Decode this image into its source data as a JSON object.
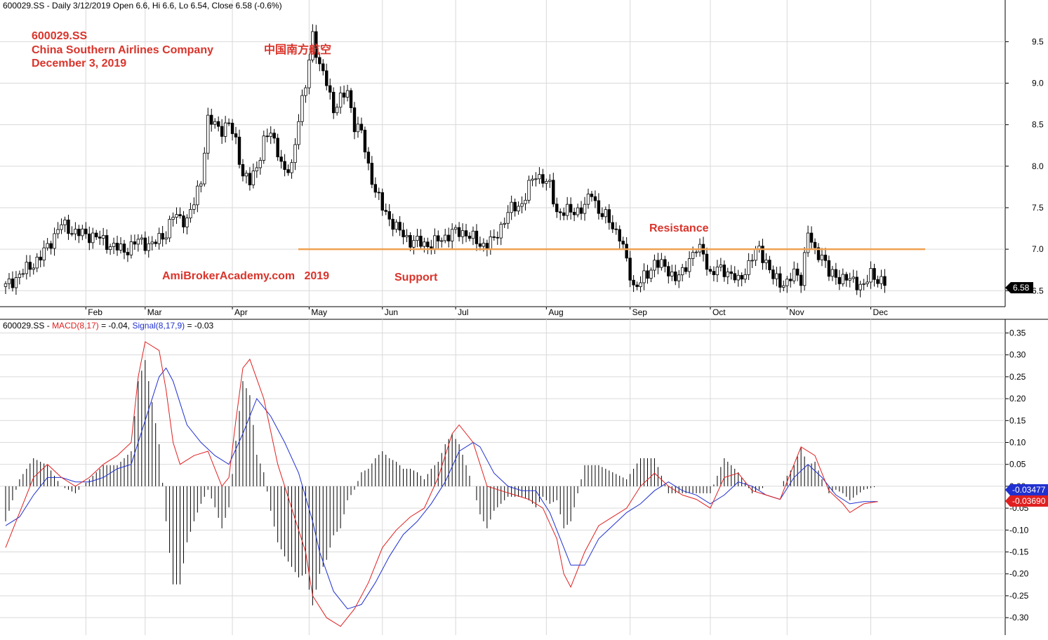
{
  "header": {
    "price_prefix": "600029.SS - Daily 3/12/2019 Open 6.6, Hi 6.6, Lo 6.54, Close 6.58 (-0.6%)",
    "macd_symbol": "600029.SS - ",
    "macd_label": "MACD(8,17)",
    "macd_value": " = -0.04, ",
    "signal_label": "Signal(8,17,9)",
    "signal_value": " = -0.03"
  },
  "annotations": {
    "ticker": "600029.SS",
    "company": "China Southern Airlines Company",
    "date": "December 3, 2019",
    "chinese_name": "中国南方航空",
    "watermark": "AmiBrokerAcademy.com   2019",
    "support": "Support",
    "resistance": "Resistance"
  },
  "badges": {
    "last_price": "6.58",
    "signal_last": "-0.03477",
    "macd_last": "-0.03690"
  },
  "colors": {
    "candle": "#000000",
    "level_line": "#f0a050",
    "macd": "#e02020",
    "signal": "#2030d0",
    "annotation": "#d9342b",
    "grid": "#d9d9d9"
  },
  "chart_data": [
    {
      "type": "candlestick",
      "symbol": "600029.SS",
      "x_months": [
        "Feb",
        "Mar",
        "Apr",
        "May",
        "Jun",
        "Jul",
        "Aug",
        "Sep",
        "Oct",
        "Nov",
        "Dec"
      ],
      "y_ticks": [
        9.5,
        9.0,
        8.5,
        8.0,
        7.5,
        7.0,
        6.5
      ],
      "ylim": [
        6.35,
        9.85
      ],
      "level_line": {
        "value": 7.0,
        "labels": [
          "Support",
          "Resistance"
        ]
      },
      "close_path": [
        [
          0,
          6.55
        ],
        [
          10,
          6.9
        ],
        [
          16,
          7.3
        ],
        [
          20,
          7.2
        ],
        [
          26,
          7.15
        ],
        [
          30,
          7.05
        ],
        [
          34,
          6.98
        ],
        [
          38,
          7.1
        ],
        [
          42,
          7.05
        ],
        [
          46,
          7.2
        ],
        [
          48,
          7.4
        ],
        [
          52,
          7.35
        ],
        [
          54,
          7.55
        ],
        [
          56,
          7.85
        ],
        [
          58,
          8.55
        ],
        [
          60,
          8.5
        ],
        [
          62,
          8.45
        ],
        [
          64,
          8.5
        ],
        [
          66,
          8.3
        ],
        [
          68,
          7.9
        ],
        [
          70,
          7.8
        ],
        [
          72,
          8.0
        ],
        [
          74,
          8.3
        ],
        [
          76,
          8.4
        ],
        [
          78,
          8.2
        ],
        [
          80,
          7.9
        ],
        [
          82,
          8.0
        ],
        [
          84,
          8.6
        ],
        [
          86,
          8.95
        ],
        [
          88,
          9.6
        ],
        [
          90,
          9.2
        ],
        [
          92,
          9.0
        ],
        [
          94,
          8.7
        ],
        [
          96,
          8.8
        ],
        [
          98,
          8.9
        ],
        [
          100,
          8.5
        ],
        [
          102,
          8.4
        ],
        [
          104,
          8.0
        ],
        [
          106,
          7.7
        ],
        [
          108,
          7.5
        ],
        [
          112,
          7.25
        ],
        [
          116,
          7.1
        ],
        [
          122,
          7.05
        ],
        [
          128,
          7.2
        ],
        [
          132,
          7.2
        ],
        [
          136,
          7.05
        ],
        [
          140,
          7.1
        ],
        [
          144,
          7.45
        ],
        [
          148,
          7.55
        ],
        [
          150,
          7.75
        ],
        [
          152,
          7.9
        ],
        [
          154,
          7.85
        ],
        [
          156,
          7.75
        ],
        [
          158,
          7.45
        ],
        [
          162,
          7.45
        ],
        [
          166,
          7.5
        ],
        [
          168,
          7.7
        ],
        [
          170,
          7.45
        ],
        [
          173,
          7.35
        ],
        [
          176,
          7.15
        ],
        [
          178,
          6.85
        ],
        [
          180,
          6.55
        ],
        [
          182,
          6.6
        ],
        [
          184,
          6.7
        ],
        [
          186,
          6.85
        ],
        [
          188,
          6.8
        ],
        [
          190,
          6.75
        ],
        [
          192,
          6.65
        ],
        [
          194,
          6.7
        ],
        [
          196,
          6.9
        ],
        [
          198,
          7.0
        ],
        [
          200,
          6.95
        ],
        [
          202,
          6.7
        ],
        [
          204,
          6.75
        ],
        [
          206,
          6.75
        ],
        [
          208,
          6.7
        ],
        [
          210,
          6.6
        ],
        [
          212,
          6.75
        ],
        [
          214,
          6.9
        ],
        [
          216,
          7.0
        ],
        [
          218,
          6.85
        ],
        [
          220,
          6.65
        ],
        [
          222,
          6.6
        ],
        [
          224,
          6.6
        ],
        [
          226,
          6.7
        ],
        [
          228,
          6.65
        ],
        [
          230,
          7.2
        ],
        [
          232,
          6.95
        ],
        [
          234,
          6.95
        ],
        [
          236,
          6.7
        ],
        [
          240,
          6.65
        ],
        [
          244,
          6.6
        ],
        [
          246,
          6.55
        ],
        [
          248,
          6.7
        ],
        [
          250,
          6.65
        ],
        [
          252,
          6.58
        ]
      ]
    },
    {
      "type": "line",
      "title": "MACD(8,17) / Signal(8,17,9)",
      "x_months": [
        "Feb",
        "Mar",
        "Apr",
        "May",
        "Jun",
        "Jul",
        "Aug",
        "Sep",
        "Oct",
        "Nov",
        "Dec"
      ],
      "y_ticks": [
        0.35,
        0.3,
        0.25,
        0.2,
        0.15,
        0.1,
        0.05,
        0.0,
        -0.05,
        -0.1,
        -0.15,
        -0.2,
        -0.25,
        -0.3
      ],
      "ylim": [
        -0.335,
        0.37
      ],
      "series": [
        {
          "name": "MACD(8,17)",
          "points": [
            [
              0,
              -0.14
            ],
            [
              4,
              -0.06
            ],
            [
              8,
              0.02
            ],
            [
              12,
              0.05
            ],
            [
              16,
              0.02
            ],
            [
              20,
              0.0
            ],
            [
              24,
              0.02
            ],
            [
              28,
              0.05
            ],
            [
              32,
              0.07
            ],
            [
              36,
              0.1
            ],
            [
              38,
              0.25
            ],
            [
              40,
              0.33
            ],
            [
              44,
              0.31
            ],
            [
              46,
              0.22
            ],
            [
              48,
              0.1
            ],
            [
              50,
              0.05
            ],
            [
              54,
              0.07
            ],
            [
              58,
              0.08
            ],
            [
              62,
              0.0
            ],
            [
              64,
              0.02
            ],
            [
              66,
              0.15
            ],
            [
              68,
              0.27
            ],
            [
              70,
              0.29
            ],
            [
              74,
              0.2
            ],
            [
              78,
              0.05
            ],
            [
              82,
              -0.05
            ],
            [
              86,
              -0.15
            ],
            [
              88,
              -0.25
            ],
            [
              92,
              -0.3
            ],
            [
              96,
              -0.32
            ],
            [
              100,
              -0.28
            ],
            [
              104,
              -0.22
            ],
            [
              108,
              -0.14
            ],
            [
              112,
              -0.1
            ],
            [
              116,
              -0.07
            ],
            [
              120,
              -0.05
            ],
            [
              124,
              0.02
            ],
            [
              128,
              0.12
            ],
            [
              130,
              0.14
            ],
            [
              134,
              0.1
            ],
            [
              138,
              0.0
            ],
            [
              142,
              -0.01
            ],
            [
              146,
              -0.02
            ],
            [
              150,
              -0.03
            ],
            [
              154,
              -0.05
            ],
            [
              158,
              -0.12
            ],
            [
              160,
              -0.2
            ],
            [
              162,
              -0.23
            ],
            [
              166,
              -0.15
            ],
            [
              170,
              -0.09
            ],
            [
              174,
              -0.07
            ],
            [
              178,
              -0.05
            ],
            [
              182,
              0.0
            ],
            [
              186,
              0.03
            ],
            [
              190,
              0.0
            ],
            [
              194,
              -0.02
            ],
            [
              198,
              -0.03
            ],
            [
              202,
              -0.05
            ],
            [
              206,
              0.02
            ],
            [
              210,
              0.03
            ],
            [
              214,
              -0.01
            ],
            [
              218,
              -0.02
            ],
            [
              222,
              -0.03
            ],
            [
              226,
              0.05
            ],
            [
              228,
              0.09
            ],
            [
              232,
              0.07
            ],
            [
              236,
              -0.01
            ],
            [
              240,
              -0.04
            ],
            [
              242,
              -0.06
            ],
            [
              246,
              -0.04
            ],
            [
              250,
              -0.035
            ]
          ]
        },
        {
          "name": "Signal(8,17,9)",
          "points": [
            [
              0,
              -0.09
            ],
            [
              4,
              -0.07
            ],
            [
              8,
              -0.02
            ],
            [
              12,
              0.02
            ],
            [
              16,
              0.02
            ],
            [
              20,
              0.01
            ],
            [
              24,
              0.01
            ],
            [
              28,
              0.02
            ],
            [
              32,
              0.04
            ],
            [
              36,
              0.05
            ],
            [
              40,
              0.15
            ],
            [
              44,
              0.25
            ],
            [
              46,
              0.27
            ],
            [
              48,
              0.24
            ],
            [
              52,
              0.14
            ],
            [
              56,
              0.1
            ],
            [
              60,
              0.07
            ],
            [
              64,
              0.05
            ],
            [
              68,
              0.12
            ],
            [
              72,
              0.2
            ],
            [
              76,
              0.16
            ],
            [
              80,
              0.1
            ],
            [
              84,
              0.03
            ],
            [
              88,
              -0.08
            ],
            [
              90,
              -0.15
            ],
            [
              94,
              -0.24
            ],
            [
              98,
              -0.28
            ],
            [
              102,
              -0.27
            ],
            [
              106,
              -0.22
            ],
            [
              110,
              -0.16
            ],
            [
              114,
              -0.11
            ],
            [
              118,
              -0.08
            ],
            [
              122,
              -0.04
            ],
            [
              126,
              0.01
            ],
            [
              130,
              0.08
            ],
            [
              134,
              0.1
            ],
            [
              136,
              0.09
            ],
            [
              140,
              0.03
            ],
            [
              144,
              0.0
            ],
            [
              148,
              -0.01
            ],
            [
              152,
              -0.01
            ],
            [
              156,
              -0.06
            ],
            [
              160,
              -0.14
            ],
            [
              162,
              -0.18
            ],
            [
              166,
              -0.18
            ],
            [
              170,
              -0.12
            ],
            [
              174,
              -0.09
            ],
            [
              178,
              -0.06
            ],
            [
              182,
              -0.04
            ],
            [
              186,
              -0.01
            ],
            [
              190,
              0.01
            ],
            [
              194,
              -0.01
            ],
            [
              198,
              -0.02
            ],
            [
              202,
              -0.04
            ],
            [
              206,
              -0.02
            ],
            [
              210,
              0.01
            ],
            [
              214,
              0.0
            ],
            [
              218,
              -0.02
            ],
            [
              222,
              -0.03
            ],
            [
              226,
              0.02
            ],
            [
              230,
              0.05
            ],
            [
              234,
              0.02
            ],
            [
              238,
              -0.02
            ],
            [
              242,
              -0.04
            ],
            [
              246,
              -0.035
            ],
            [
              250,
              -0.035
            ]
          ]
        }
      ]
    }
  ]
}
